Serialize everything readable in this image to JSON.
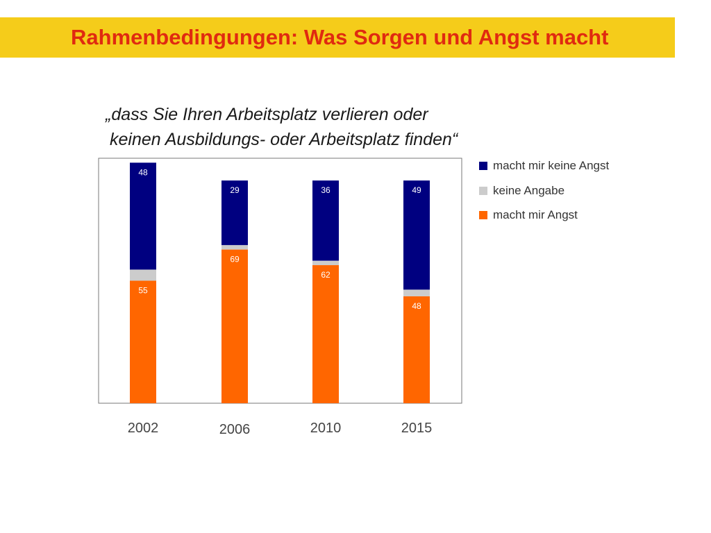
{
  "header": {
    "title": "Rahmenbedingungen: Was Sorgen und Angst macht"
  },
  "subtitle": {
    "line1": "„dass Sie Ihren Arbeitsplatz verlieren oder",
    "line2": "keinen Ausbildungs- oder Arbeitsplatz finden“"
  },
  "colors": {
    "title_bar": "#f5cc1a",
    "title_text": "#e02a10",
    "keine_angst": "#000080",
    "keine_angabe": "#cccccc",
    "angst": "#ff6600"
  },
  "chart_data": {
    "type": "bar",
    "stacked": true,
    "categories": [
      "2002",
      "2006",
      "2010",
      "2015"
    ],
    "series": [
      {
        "name": "macht mir Angst",
        "values": [
          55,
          69,
          62,
          48
        ],
        "color": "#ff6600"
      },
      {
        "name": "keine Angabe",
        "values": [
          5,
          2,
          2,
          3
        ],
        "color": "#cccccc",
        "labeled": false
      },
      {
        "name": "macht mir keine Angst",
        "values": [
          48,
          29,
          36,
          49
        ],
        "color": "#000080"
      }
    ],
    "ylim": [
      0,
      110
    ],
    "grid": false,
    "legend_position": "right",
    "legend_order": [
      "macht mir keine Angst",
      "keine Angabe",
      "macht mir Angst"
    ]
  }
}
